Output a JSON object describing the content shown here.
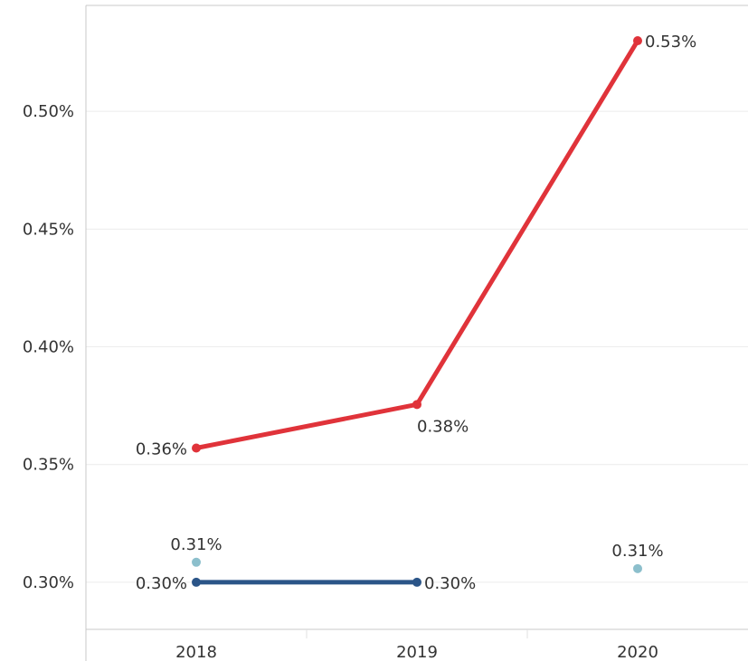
{
  "chart_data": {
    "type": "line",
    "title": "",
    "xlabel": "",
    "ylabel": "",
    "categories": [
      "2018",
      "2019",
      "2020"
    ],
    "ylim": [
      0.28,
      0.545
    ],
    "y_ticks": [
      0.3,
      0.35,
      0.4,
      0.45,
      0.5
    ],
    "y_tick_labels": [
      "0.30%",
      "0.35%",
      "0.40%",
      "0.45%",
      "0.50%"
    ],
    "grid": "horizontal",
    "legend": "none",
    "series": [
      {
        "values": [
          0.357,
          0.3755,
          0.53
        ],
        "labels": [
          "0.36%",
          "0.38%",
          "0.53%"
        ],
        "color": "#e0333a",
        "style": "line"
      },
      {
        "values": [
          0.3,
          0.3,
          null
        ],
        "labels": [
          "0.30%",
          "0.30%",
          ""
        ],
        "color": "#2b5588",
        "style": "line"
      },
      {
        "values": [
          0.3085,
          null,
          0.3058
        ],
        "labels": [
          "0.31%",
          "",
          "0.31%"
        ],
        "color": "#8cbfcc",
        "style": "points"
      }
    ]
  }
}
